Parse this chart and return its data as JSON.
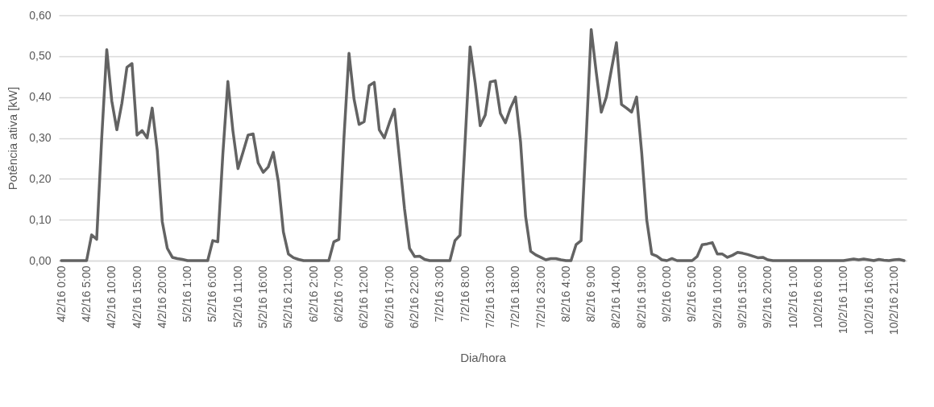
{
  "chart_data": {
    "type": "line",
    "xlabel": "Dia/hora",
    "ylabel": "Potência ativa [kW]",
    "categories": [
      "4/2/16 0:00",
      null,
      null,
      null,
      null,
      "4/2/16 5:00",
      null,
      null,
      null,
      null,
      "4/2/16 10:00",
      null,
      null,
      null,
      null,
      "4/2/16 15:00",
      null,
      null,
      null,
      null,
      "4/2/16 20:00",
      null,
      null,
      null,
      null,
      "5/2/16 1:00",
      null,
      null,
      null,
      null,
      "5/2/16 6:00",
      null,
      null,
      null,
      null,
      "5/2/16 11:00",
      null,
      null,
      null,
      null,
      "5/2/16 16:00",
      null,
      null,
      null,
      null,
      "5/2/16 21:00",
      null,
      null,
      null,
      null,
      "6/2/16 2:00",
      null,
      null,
      null,
      null,
      "6/2/16 7:00",
      null,
      null,
      null,
      null,
      "6/2/16 12:00",
      null,
      null,
      null,
      null,
      "6/2/16 17:00",
      null,
      null,
      null,
      null,
      "6/2/16 22:00",
      null,
      null,
      null,
      null,
      "7/2/16 3:00",
      null,
      null,
      null,
      null,
      "7/2/16 8:00",
      null,
      null,
      null,
      null,
      "7/2/16 13:00",
      null,
      null,
      null,
      null,
      "7/2/16 18:00",
      null,
      null,
      null,
      null,
      "7/2/16 23:00",
      null,
      null,
      null,
      null,
      "8/2/16 4:00",
      null,
      null,
      null,
      null,
      "8/2/16 9:00",
      null,
      null,
      null,
      null,
      "8/2/16 14:00",
      null,
      null,
      null,
      null,
      "8/2/16 19:00",
      null,
      null,
      null,
      null,
      "9/2/16 0:00",
      null,
      null,
      null,
      null,
      "9/2/16 5:00",
      null,
      null,
      null,
      null,
      "9/2/16 10:00",
      null,
      null,
      null,
      null,
      "9/2/16 15:00",
      null,
      null,
      null,
      null,
      "9/2/16 20:00",
      null,
      null,
      null,
      null,
      "10/2/16 1:00",
      null,
      null,
      null,
      null,
      "10/2/16 6:00",
      null,
      null,
      null,
      null,
      "10/2/16 11:00",
      null,
      null,
      null,
      null,
      "10/2/16 16:00",
      null,
      null,
      null,
      null,
      "10/2/16 21:00",
      null,
      null
    ],
    "values": [
      0,
      0,
      0,
      0,
      0,
      0,
      0.063,
      0.052,
      0.3,
      0.516,
      0.39,
      0.32,
      0.385,
      0.473,
      0.482,
      0.307,
      0.318,
      0.3,
      0.373,
      0.27,
      0.095,
      0.03,
      0.008,
      0.005,
      0.003,
      0,
      0,
      0,
      0,
      0,
      0.049,
      0.046,
      0.26,
      0.438,
      0.317,
      0.225,
      0.265,
      0.307,
      0.31,
      0.239,
      0.216,
      0.229,
      0.265,
      0.193,
      0.07,
      0.016,
      0.007,
      0.003,
      0,
      0,
      0,
      0,
      0,
      0,
      0.046,
      0.052,
      0.3,
      0.507,
      0.395,
      0.333,
      0.34,
      0.428,
      0.436,
      0.32,
      0.3,
      0.337,
      0.37,
      0.25,
      0.127,
      0.03,
      0.01,
      0.011,
      0.003,
      0,
      0,
      0,
      0,
      0,
      0.049,
      0.062,
      0.29,
      0.523,
      0.435,
      0.33,
      0.356,
      0.437,
      0.44,
      0.36,
      0.337,
      0.373,
      0.4,
      0.29,
      0.108,
      0.023,
      0.014,
      0.008,
      0.002,
      0.005,
      0.005,
      0.002,
      0,
      0,
      0.039,
      0.049,
      0.3,
      0.565,
      0.46,
      0.363,
      0.4,
      0.467,
      0.533,
      0.382,
      0.373,
      0.363,
      0.4,
      0.265,
      0.1,
      0.016,
      0.011,
      0.002,
      0,
      0.005,
      0,
      0,
      0,
      0,
      0.01,
      0.039,
      0.041,
      0.044,
      0.016,
      0.016,
      0.008,
      0.013,
      0.02,
      0.018,
      0.015,
      0.011,
      0.007,
      0.008,
      0.002,
      0,
      0,
      0,
      0,
      0,
      0,
      0,
      0,
      0,
      0,
      0,
      0,
      0,
      0,
      0,
      0.002,
      0.004,
      0.002,
      0.004,
      0.002,
      0,
      0.003,
      0.001,
      0,
      0.002,
      0.003,
      0
    ],
    "color": "#636363",
    "ylim": [
      0,
      0.6
    ],
    "yticks": [
      {
        "value": 0,
        "label": "0,00"
      },
      {
        "value": 0.1,
        "label": "0,10"
      },
      {
        "value": 0.2,
        "label": "0,20"
      },
      {
        "value": 0.3,
        "label": "0,30"
      },
      {
        "value": 0.4,
        "label": "0,40"
      },
      {
        "value": 0.5,
        "label": "0,50"
      },
      {
        "value": 0.6,
        "label": "0,60"
      }
    ],
    "grid": "y",
    "line_style": "solid"
  }
}
